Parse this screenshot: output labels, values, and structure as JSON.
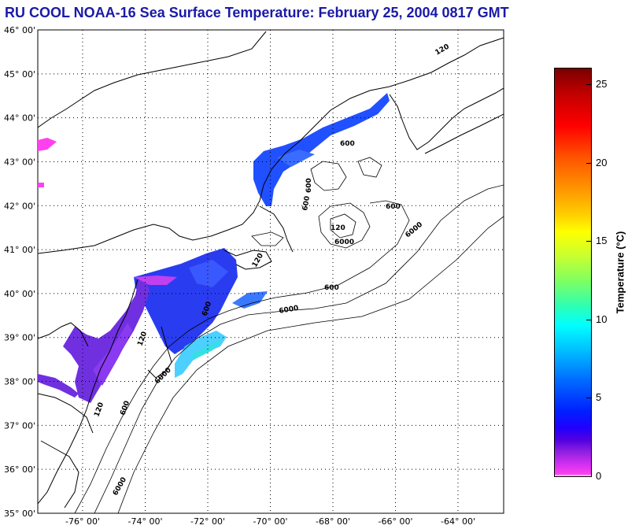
{
  "title": "RU COOL  NOAA-16  Sea Surface Temperature:  February 25, 2004 0817 GMT",
  "colors": {
    "title": "#1a1aa8",
    "coast": "#000000",
    "grid": "#000000"
  },
  "axes": {
    "lat_labels": [
      "46° 00'",
      "45° 00'",
      "44° 00'",
      "43° 00'",
      "42° 00'",
      "41° 00'",
      "40° 00'",
      "39° 00'",
      "38° 00'",
      "37° 00'",
      "36° 00'",
      "35° 00'"
    ],
    "lon_labels": [
      "-76° 00'",
      "-74° 00'",
      "-72° 00'",
      "-70° 00'",
      "-68° 00'",
      "-66° 00'",
      "-64° 00'"
    ]
  },
  "contour_labels": [
    "6000",
    "600",
    "600",
    "600",
    "120",
    "120",
    "600",
    "6000",
    "600",
    "600",
    "6000",
    "600",
    "6000",
    "120",
    "120",
    "6000",
    "120"
  ],
  "colorbar": {
    "label": "Temperature (°C)",
    "ticks": [
      "25",
      "20",
      "15",
      "10",
      "5",
      "0"
    ],
    "tick_values": [
      25,
      20,
      15,
      10,
      5,
      0
    ],
    "min": 0,
    "max": 26
  }
}
